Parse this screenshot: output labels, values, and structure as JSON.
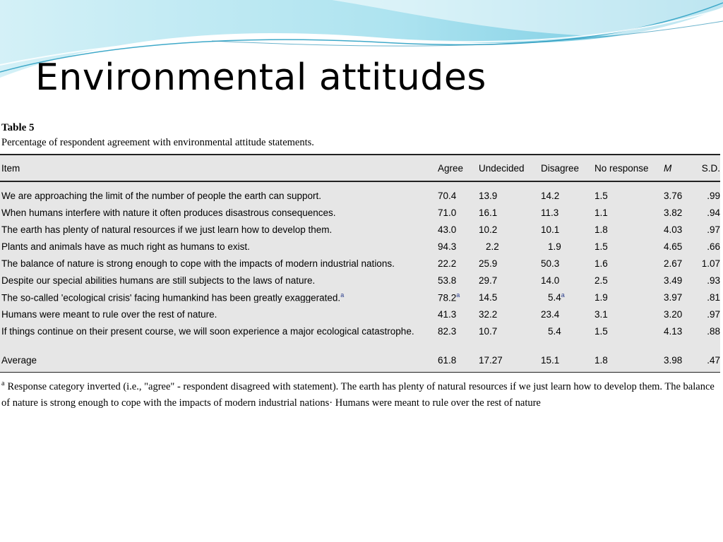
{
  "slide": {
    "title": "Environmental attitudes"
  },
  "table": {
    "label": "Table 5",
    "caption": "Percentage of respondent agreement with environmental attitude statements.",
    "headers": {
      "item": "Item",
      "agree": "Agree",
      "undecided": "Undecided",
      "disagree": "Disagree",
      "no_response": "No response",
      "m": "M",
      "sd": "S.D."
    },
    "rows": [
      {
        "item": "We are approaching the limit of the number of people the earth can support.",
        "agree": "70.4",
        "undecided": "13.9",
        "disagree": "14.2",
        "no_response": "1.5",
        "m": "3.76",
        "sd": ".99"
      },
      {
        "item": "When humans interfere with nature it often produces disastrous consequences.",
        "agree": "71.0",
        "undecided": "16.1",
        "disagree": "11.3",
        "no_response": "1.1",
        "m": "3.82",
        "sd": ".94"
      },
      {
        "item": "The earth has plenty of natural resources if we just learn how to develop them.",
        "agree": "43.0",
        "undecided": "10.2",
        "disagree": "10.1",
        "no_response": "1.8",
        "m": "4.03",
        "sd": ".97"
      },
      {
        "item": "Plants and animals have as much right as humans to exist.",
        "agree": "94.3",
        "undecided": "2.2",
        "disagree": "1.9",
        "no_response": "1.5",
        "m": "4.65",
        "sd": ".66"
      },
      {
        "item": "The balance of nature is strong enough to cope with the impacts of modern industrial nations.",
        "agree": "22.2",
        "undecided": "25.9",
        "disagree": "50.3",
        "no_response": "1.6",
        "m": "2.67",
        "sd": "1.07"
      },
      {
        "item": "Despite our special abilities humans are still subjects to the laws of nature.",
        "agree": "53.8",
        "undecided": "29.7",
        "disagree": "14.0",
        "no_response": "2.5",
        "m": "3.49",
        "sd": ".93"
      },
      {
        "item": "The so-called 'ecological crisis' facing humankind has been greatly exaggerated.",
        "item_sup": "a",
        "agree": "78.2",
        "agree_sup": "a",
        "undecided": "14.5",
        "disagree": "5.4",
        "disagree_sup": "a",
        "no_response": "1.9",
        "m": "3.97",
        "sd": ".81"
      },
      {
        "item": "Humans were meant to rule over the rest of nature.",
        "agree": "41.3",
        "undecided": "32.2",
        "disagree": "23.4",
        "no_response": "3.1",
        "m": "3.20",
        "sd": ".97"
      },
      {
        "item": "If things continue on their present course, we will soon experience a major ecological catastrophe.",
        "agree": "82.3",
        "undecided": "10.7",
        "disagree": "5.4",
        "no_response": "1.5",
        "m": "4.13",
        "sd": ".88"
      }
    ],
    "average": {
      "item": "Average",
      "agree": "61.8",
      "undecided": "17.27",
      "disagree": "15.1",
      "no_response": "1.8",
      "m": "3.98",
      "sd": ".47"
    },
    "footnote": {
      "marker": "a",
      "text": "Response category inverted (i.e., \"agree\" - respondent disagreed with statement). The earth has plenty of natural resources if we just learn how to develop them. The balance of nature is strong enough to cope with the impacts of modern industrial nations· Humans were meant to rule over the rest of nature"
    }
  },
  "colors": {
    "wave_light": "#c6ecf3",
    "wave_mid": "#8fd3e8",
    "wave_dark": "#3fa9c9",
    "table_bg": "#e6e6e6"
  }
}
